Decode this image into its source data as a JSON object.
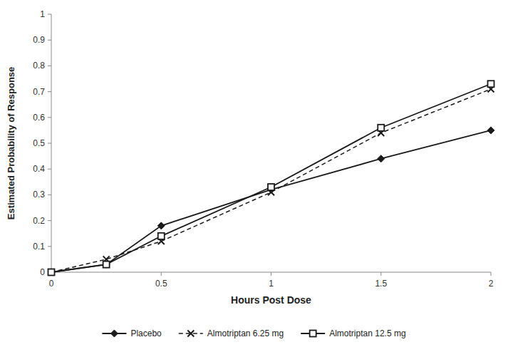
{
  "chart_data": {
    "type": "line",
    "x": [
      0,
      0.25,
      0.5,
      1.0,
      1.5,
      2.0
    ],
    "xlabel": "Hours Post Dose",
    "ylabel": "Estimated Probability of Response",
    "xlim": [
      0,
      2
    ],
    "ylim": [
      0,
      1
    ],
    "xticks": [
      0,
      0.5,
      1,
      1.5,
      2
    ],
    "yticks": [
      0,
      0.1,
      0.2,
      0.3,
      0.4,
      0.5,
      0.6,
      0.7,
      0.8,
      0.9,
      1
    ],
    "grid": false,
    "legend": "bottom",
    "series": [
      {
        "name": "Placebo",
        "color": "#1a1a1a",
        "marker": "diamond",
        "line_style": "solid",
        "values": [
          0.0,
          0.03,
          0.18,
          0.32,
          0.44,
          0.55
        ]
      },
      {
        "name": "Almotriptan 6.25 mg",
        "color": "#1a1a1a",
        "marker": "cross",
        "line_style": "dashed",
        "values": [
          0.0,
          0.05,
          0.12,
          0.31,
          0.54,
          0.71
        ]
      },
      {
        "name": "Almotriptan 12.5 mg",
        "color": "#1a1a1a",
        "marker": "open-square",
        "line_style": "solid",
        "values": [
          0.0,
          0.03,
          0.14,
          0.33,
          0.56,
          0.73
        ]
      }
    ]
  }
}
